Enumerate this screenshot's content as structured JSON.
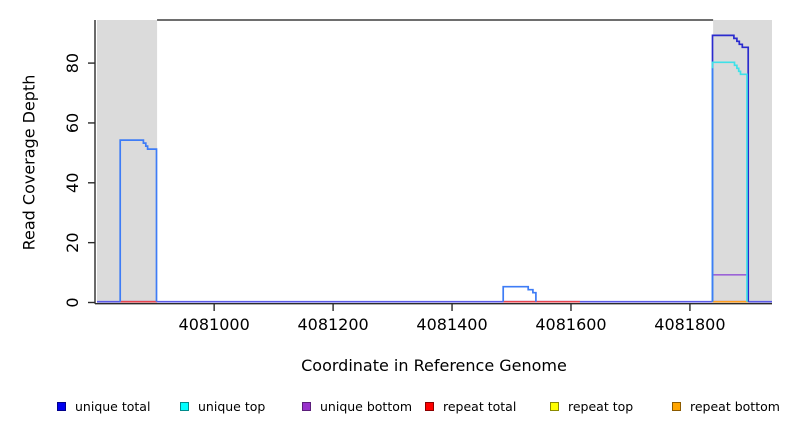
{
  "chart_data": {
    "type": "line",
    "subtype": "step-coverage-plot",
    "title": "",
    "xlabel": "Coordinate in Reference Genome",
    "ylabel": "Read Coverage Depth",
    "x_ticks": [
      4081000,
      4081200,
      4081400,
      4081600,
      4081800
    ],
    "y_ticks": [
      0,
      20,
      40,
      60,
      80
    ],
    "xlim": [
      4080803,
      4081938
    ],
    "ylim": [
      0,
      94.4
    ],
    "grid": false,
    "shaded_regions": [
      {
        "name": "highlight-band-left",
        "x0": 4080803,
        "x1": 4080904,
        "color": "#DBDBDB"
      },
      {
        "name": "highlight-band-right",
        "x0": 4081839,
        "x1": 4081938,
        "color": "#DBDBDB"
      }
    ],
    "series_summary": [
      {
        "name": "unique total",
        "max_depth": 89,
        "peaks": "54 near 4080850; 5 near 4081500; 89 near 4081860"
      },
      {
        "name": "unique top",
        "max_depth": 80,
        "peaks": "80 near 4081860 (coincides with total elsewhere)"
      },
      {
        "name": "unique bottom",
        "max_depth": 9,
        "peaks": "9 from 4081838 to 4081898"
      },
      {
        "name": "repeat total",
        "max_depth": 0,
        "peaks": "0 (visible 4080842-4080904 and 4081486-4081615)"
      },
      {
        "name": "repeat top",
        "max_depth": 0,
        "peaks": "0 (hidden)"
      },
      {
        "name": "repeat bottom",
        "max_depth": 0,
        "peaks": "0 (visible 4081838-4081898)"
      }
    ],
    "paths": [
      {
        "name": "baseline-unique",
        "color": "#5B59E8",
        "points": [
          [
            4080803,
            0
          ],
          [
            4081938,
            0
          ]
        ]
      },
      {
        "name": "repeat-total-left",
        "color": "#E8434E",
        "points": [
          [
            4080842,
            0
          ],
          [
            4080904,
            0
          ]
        ]
      },
      {
        "name": "repeat-total-mid",
        "color": "#E8434E",
        "points": [
          [
            4081486,
            0
          ],
          [
            4081615,
            0
          ]
        ]
      },
      {
        "name": "repeat-bottom-right",
        "color": "#FF9D1E",
        "points": [
          [
            4081838,
            0
          ],
          [
            4081898,
            0
          ]
        ]
      },
      {
        "name": "unique-bottom-right-peak",
        "color": "#9B63D6",
        "points": [
          [
            4081838,
            0
          ],
          [
            4081838,
            9
          ],
          [
            4081898,
            9
          ],
          [
            4081898,
            0
          ]
        ]
      },
      {
        "name": "unique-total-right-peak",
        "color": "#2B2BCE",
        "points": [
          [
            4081838,
            0
          ],
          [
            4081838,
            89
          ],
          [
            4081874,
            89
          ],
          [
            4081874,
            88
          ],
          [
            4081879,
            88
          ],
          [
            4081879,
            87
          ],
          [
            4081883,
            87
          ],
          [
            4081883,
            86
          ],
          [
            4081888,
            86
          ],
          [
            4081888,
            85
          ],
          [
            4081898,
            85
          ],
          [
            4081898,
            0
          ]
        ]
      },
      {
        "name": "unique-top-right-peak",
        "color": "#3EE1E8",
        "points": [
          [
            4081838,
            0
          ],
          [
            4081838,
            80
          ],
          [
            4081875,
            80
          ],
          [
            4081875,
            79
          ],
          [
            4081879,
            79
          ],
          [
            4081879,
            78
          ],
          [
            4081882,
            78
          ],
          [
            4081882,
            77
          ],
          [
            4081885,
            77
          ],
          [
            4081885,
            76
          ],
          [
            4081896,
            76
          ],
          [
            4081896,
            0
          ]
        ]
      },
      {
        "name": "right-peak-left-edge",
        "color": "#3E7CF6",
        "points": [
          [
            4081838,
            0
          ],
          [
            4081838,
            78
          ]
        ]
      },
      {
        "name": "unique-left-bump",
        "color": "#3E7CF6",
        "points": [
          [
            4080842,
            0
          ],
          [
            4080842,
            54
          ],
          [
            4080881,
            54
          ],
          [
            4080881,
            53
          ],
          [
            4080885,
            53
          ],
          [
            4080885,
            52
          ],
          [
            4080888,
            52
          ],
          [
            4080888,
            51
          ],
          [
            4080891,
            51
          ],
          [
            4080903,
            51
          ],
          [
            4080903,
            0
          ]
        ]
      },
      {
        "name": "unique-mid-bump",
        "color": "#3E7CF6",
        "points": [
          [
            4081486,
            0
          ],
          [
            4081486,
            5
          ],
          [
            4081528,
            5
          ],
          [
            4081528,
            4
          ],
          [
            4081536,
            4
          ],
          [
            4081536,
            3
          ],
          [
            4081541,
            3
          ],
          [
            4081541,
            0
          ]
        ]
      }
    ],
    "legend": {
      "position": "bottom",
      "entries": [
        {
          "label": "unique total",
          "color": "#0000F0",
          "border": "#00008B"
        },
        {
          "label": "unique top",
          "color": "#00FFFF",
          "border": "#008B8B"
        },
        {
          "label": "unique bottom",
          "color": "#9932CC",
          "border": "#5B1E7A"
        },
        {
          "label": "repeat total",
          "color": "#FF0000",
          "border": "#8B0000"
        },
        {
          "label": "repeat top",
          "color": "#FFFF00",
          "border": "#8B8B00"
        },
        {
          "label": "repeat bottom",
          "color": "#FFA500",
          "border": "#8B5A00"
        }
      ]
    },
    "colors": {
      "band": "#DBDBDB",
      "top_border": "#6E6E6E",
      "axis": "#2B2B2B",
      "text": "#000000"
    }
  }
}
